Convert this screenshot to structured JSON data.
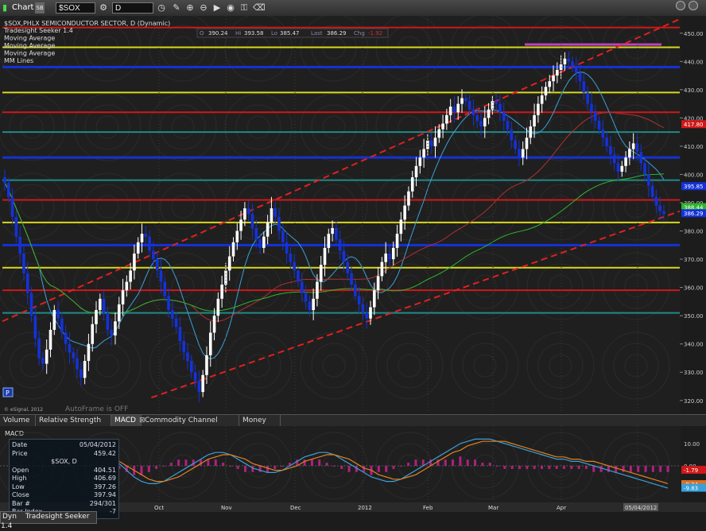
{
  "toolbar": {
    "app_title": "Chart",
    "symbol_value": "$SOX",
    "interval_value": "D",
    "link_label": "SB"
  },
  "header": {
    "symbol_line": "$SOX,PHLX SEMICONDUCTOR SECTOR, D (Dynamic)",
    "studies": [
      "Tradesight Seeker 1.4",
      "Moving Average",
      "Moving Average",
      "Moving Average",
      "MM Lines"
    ],
    "ohlc": {
      "o_label": "O",
      "o": "390.24",
      "h_label": "Hi",
      "h": "393.58",
      "l_label": "Lo",
      "l": "385.47",
      "last_label": "Last",
      "last": "386.29",
      "chg_label": "Chg",
      "chg": "-1.92"
    }
  },
  "watermark": "AutoFrame is OFF",
  "copyright": "© eSignal, 2012",
  "p_box": "P",
  "colors": {
    "up": "#ffffff",
    "down": "#1432d8",
    "green": "#2db52d",
    "red": "#d01818",
    "yellow": "#d8d820",
    "cyan": "#3aa0d8",
    "magenta": "#c040c0",
    "teal": "#208a8a"
  },
  "chart_data": {
    "type": "candlestick",
    "y_ticks": [
      "450.00",
      "440.00",
      "430.00",
      "420.00",
      "410.00",
      "400.00",
      "390.00",
      "380.00",
      "370.00",
      "360.00",
      "350.00",
      "340.00",
      "330.00",
      "320.00"
    ],
    "ylim": [
      316,
      455
    ],
    "x_labels": [
      "Oct",
      "Nov",
      "Dec",
      "2012",
      "Feb",
      "Mar",
      "Apr",
      "05/04/2012"
    ],
    "price_flags": [
      {
        "value": "417.80",
        "color": "#d01818"
      },
      {
        "value": "395.85",
        "color": "#1432d8"
      },
      {
        "value": "388.44",
        "color": "#2db52d"
      },
      {
        "value": "386.29",
        "color": "#1432d8"
      }
    ],
    "horizontal_levels": [
      {
        "y": 452,
        "color": "#d01818"
      },
      {
        "y": 445,
        "color": "#d8d820"
      },
      {
        "y": 438,
        "color": "#1432d8"
      },
      {
        "y": 429,
        "color": "#d8d820"
      },
      {
        "y": 422,
        "color": "#d01818"
      },
      {
        "y": 415,
        "color": "#208a8a"
      },
      {
        "y": 406,
        "color": "#1432d8"
      },
      {
        "y": 398,
        "color": "#208a8a"
      },
      {
        "y": 391,
        "color": "#d01818"
      },
      {
        "y": 383,
        "color": "#d8d820"
      },
      {
        "y": 375,
        "color": "#1432d8"
      },
      {
        "y": 367,
        "color": "#d8d820"
      },
      {
        "y": 359,
        "color": "#d01818"
      },
      {
        "y": 351,
        "color": "#208a8a"
      }
    ],
    "channel_lines": [
      {
        "from": [
          0,
          348
        ],
        "to": [
          1,
          455
        ]
      },
      {
        "from": [
          0.22,
          321
        ],
        "to": [
          1,
          387
        ]
      }
    ],
    "closes": [
      397,
      392,
      385,
      378,
      372,
      365,
      358,
      350,
      342,
      335,
      333,
      338,
      345,
      352,
      349,
      344,
      340,
      337,
      335,
      331,
      328,
      334,
      340,
      347,
      352,
      356,
      351,
      345,
      343,
      348,
      354,
      359,
      362,
      366,
      372,
      376,
      379,
      378,
      373,
      370,
      366,
      362,
      357,
      352,
      349,
      346,
      341,
      337,
      334,
      330,
      327,
      323,
      329,
      336,
      344,
      350,
      356,
      361,
      366,
      371,
      376,
      380,
      384,
      388,
      386,
      381,
      377,
      374,
      378,
      383,
      388,
      385,
      380,
      376,
      372,
      369,
      366,
      362,
      358,
      355,
      352,
      356,
      362,
      368,
      374,
      379,
      381,
      377,
      373,
      369,
      365,
      361,
      357,
      354,
      351,
      349,
      353,
      359,
      364,
      369,
      372,
      370,
      374,
      379,
      384,
      389,
      394,
      399,
      403,
      406,
      409,
      412,
      410,
      413,
      416,
      418,
      421,
      424,
      422,
      425,
      427,
      426,
      423,
      421,
      419,
      417,
      420,
      423,
      426,
      425,
      422,
      419,
      416,
      412,
      409,
      406,
      409,
      413,
      417,
      421,
      425,
      428,
      431,
      433,
      435,
      437,
      439,
      441,
      440,
      438,
      436,
      433,
      429,
      425,
      422,
      419,
      416,
      413,
      410,
      407,
      404,
      401,
      403,
      406,
      409,
      411,
      408,
      404,
      400,
      396,
      392,
      389,
      387,
      386
    ],
    "bar_heights": [
      6,
      4,
      7,
      5,
      8,
      6,
      9,
      5,
      7,
      6,
      5,
      8,
      6,
      4,
      7,
      5,
      6,
      9,
      4,
      7,
      6,
      5,
      8,
      6,
      7,
      4,
      6,
      5,
      8,
      7,
      6,
      9,
      5,
      6,
      7,
      4,
      8,
      6,
      5,
      7,
      6,
      9,
      4,
      6,
      7,
      5,
      8,
      6,
      7,
      5,
      6,
      8,
      4,
      7,
      9,
      6,
      5,
      7,
      6,
      8,
      4,
      6,
      7,
      5,
      6,
      8,
      7,
      5,
      4,
      6,
      9,
      5,
      7,
      6,
      8,
      5,
      6,
      4,
      7,
      6,
      5,
      8,
      6,
      7,
      9,
      4,
      6,
      5,
      7,
      8,
      6,
      5,
      4,
      7,
      6,
      8,
      5,
      6,
      7,
      4,
      9,
      6,
      5,
      7,
      6,
      8,
      4,
      5,
      7,
      6,
      8,
      5,
      6,
      9,
      4,
      7,
      5,
      6,
      8,
      6,
      7,
      4,
      5,
      8,
      6,
      7,
      9,
      5,
      4,
      6,
      7,
      8,
      5,
      6,
      4,
      7,
      6,
      8,
      5,
      9,
      6,
      7,
      4,
      5,
      8,
      6,
      7,
      5,
      6,
      4,
      8,
      7,
      6,
      5,
      9,
      6,
      4,
      7,
      5,
      8,
      6,
      7,
      4,
      5,
      6,
      8,
      7,
      6,
      5,
      9,
      4,
      6,
      7,
      5
    ],
    "macd_ticks": [
      "10.00",
      "0.00",
      "-10.00"
    ],
    "macd_ylim": [
      -15,
      15
    ],
    "macd_flags": [
      {
        "value": "-1.79",
        "color": "#d01818"
      },
      {
        "value": "-8.24",
        "color": "#e07020"
      },
      {
        "value": "-9.83",
        "color": "#3aa0d8"
      }
    ],
    "macd_line": [
      1,
      -2,
      -5,
      -7,
      -8,
      -8,
      -7,
      -5,
      -3,
      -1,
      1,
      3,
      5,
      6,
      6,
      5,
      3,
      1,
      -1,
      -2,
      -3,
      -3,
      -2,
      0,
      2,
      4,
      5,
      6,
      6,
      5,
      3,
      1,
      -1,
      -3,
      -5,
      -6,
      -7,
      -7,
      -6,
      -4,
      -2,
      0,
      2,
      4,
      6,
      8,
      10,
      11,
      12,
      12,
      12,
      11,
      10,
      9,
      8,
      7,
      6,
      5,
      4,
      3,
      3,
      2,
      2,
      1,
      0,
      -1,
      -2,
      -3,
      -4,
      -5,
      -6,
      -7,
      -8,
      -9,
      -10
    ],
    "signal_line": [
      2,
      0,
      -2,
      -4,
      -6,
      -7,
      -7,
      -6,
      -5,
      -3,
      -1,
      1,
      3,
      4,
      5,
      5,
      4,
      3,
      1,
      0,
      -1,
      -2,
      -2,
      -1,
      0,
      2,
      3,
      4,
      5,
      5,
      4,
      3,
      1,
      -1,
      -2,
      -4,
      -5,
      -6,
      -6,
      -5,
      -4,
      -2,
      0,
      2,
      4,
      6,
      7,
      9,
      10,
      11,
      11,
      11,
      11,
      10,
      9,
      8,
      7,
      6,
      5,
      4,
      4,
      3,
      3,
      2,
      2,
      1,
      0,
      -1,
      -2,
      -3,
      -4,
      -5,
      -6,
      -7,
      -8
    ]
  },
  "macd_panel": {
    "title": "MACD",
    "data_window": {
      "rows": [
        {
          "label": "Date",
          "value": "05/04/2012"
        },
        {
          "label": "Price",
          "value": "459.42"
        },
        {
          "label": "",
          "value": "$SOX, D"
        },
        {
          "label": "Open",
          "value": "404.51"
        },
        {
          "label": "High",
          "value": "406.69"
        },
        {
          "label": "Low",
          "value": "397.26"
        },
        {
          "label": "Close",
          "value": "397.94"
        },
        {
          "label": "Bar #",
          "value": "294/301"
        },
        {
          "label": "Bar Index",
          "value": "-7"
        }
      ]
    }
  },
  "tabs": [
    {
      "label": "Volume",
      "active": false
    },
    {
      "label": "Relative Strength Index",
      "active": false
    },
    {
      "label": "MACD",
      "active": true
    },
    {
      "label": "Commodity Channel Index (CCI)",
      "active": false
    },
    {
      "label": "Money Flow",
      "active": false
    }
  ],
  "bottom": {
    "dyn": "Dyn",
    "seeker_label": "Tradesight Seeker 1.4"
  }
}
